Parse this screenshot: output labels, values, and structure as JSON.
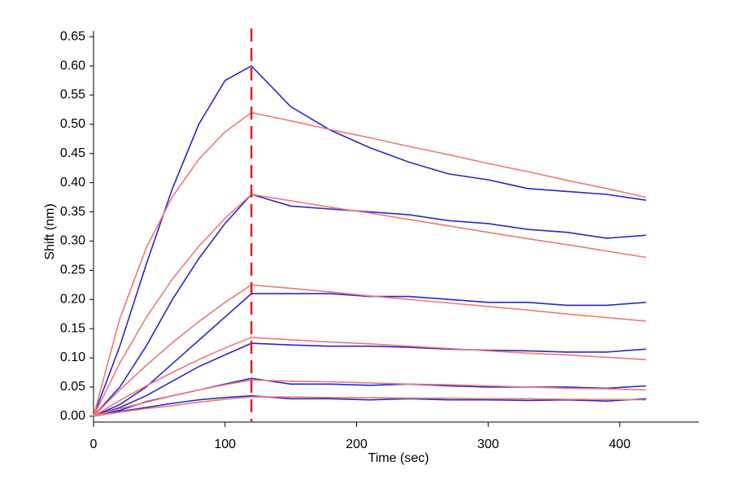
{
  "chart_data": {
    "type": "line",
    "x_label": "Time (sec)",
    "y_label": "Shift (nm)",
    "x": [
      0,
      20,
      40,
      60,
      80,
      100,
      120,
      150,
      180,
      210,
      240,
      270,
      300,
      330,
      360,
      390,
      420
    ],
    "series": [
      {
        "color": "#2828c8",
        "values": [
          0,
          0.12,
          0.26,
          0.39,
          0.5,
          0.575,
          0.6,
          0.53,
          0.49,
          0.46,
          0.435,
          0.415,
          0.405,
          0.39,
          0.385,
          0.38,
          0.37
        ]
      },
      {
        "color": "#2828c8",
        "values": [
          0,
          0.05,
          0.12,
          0.2,
          0.27,
          0.33,
          0.38,
          0.36,
          0.355,
          0.35,
          0.345,
          0.335,
          0.33,
          0.32,
          0.315,
          0.305,
          0.31
        ]
      },
      {
        "color": "#2828c8",
        "values": [
          0,
          0.02,
          0.05,
          0.09,
          0.13,
          0.17,
          0.21,
          0.21,
          0.21,
          0.205,
          0.205,
          0.2,
          0.195,
          0.195,
          0.19,
          0.19,
          0.195
        ]
      },
      {
        "color": "#2828c8",
        "values": [
          0,
          0.015,
          0.035,
          0.06,
          0.085,
          0.105,
          0.125,
          0.122,
          0.12,
          0.12,
          0.118,
          0.115,
          0.113,
          0.112,
          0.11,
          0.11,
          0.115
        ]
      },
      {
        "color": "#2828c8",
        "values": [
          0,
          0.01,
          0.025,
          0.035,
          0.045,
          0.055,
          0.065,
          0.055,
          0.055,
          0.053,
          0.055,
          0.052,
          0.05,
          0.05,
          0.05,
          0.048,
          0.052
        ]
      },
      {
        "color": "#2828c8",
        "values": [
          0,
          0.008,
          0.015,
          0.022,
          0.028,
          0.032,
          0.035,
          0.03,
          0.03,
          0.028,
          0.03,
          0.028,
          0.028,
          0.027,
          0.028,
          0.026,
          0.03
        ]
      },
      {
        "color": "#f07878",
        "values": [
          0,
          0.167,
          0.288,
          0.376,
          0.44,
          0.487,
          0.52,
          0.506,
          0.491,
          0.477,
          0.462,
          0.448,
          0.433,
          0.419,
          0.404,
          0.39,
          0.375
        ]
      },
      {
        "color": "#f07878",
        "values": [
          0,
          0.091,
          0.169,
          0.235,
          0.291,
          0.339,
          0.38,
          0.369,
          0.358,
          0.348,
          0.337,
          0.326,
          0.315,
          0.304,
          0.294,
          0.283,
          0.272
        ]
      },
      {
        "color": "#f07878",
        "values": [
          0,
          0.045,
          0.087,
          0.126,
          0.162,
          0.195,
          0.225,
          0.219,
          0.213,
          0.206,
          0.2,
          0.194,
          0.188,
          0.182,
          0.175,
          0.169,
          0.163
        ]
      },
      {
        "color": "#f07878",
        "values": [
          0,
          0.027,
          0.052,
          0.075,
          0.097,
          0.117,
          0.135,
          0.131,
          0.127,
          0.124,
          0.12,
          0.116,
          0.112,
          0.108,
          0.105,
          0.101,
          0.097
        ]
      },
      {
        "color": "#f07878",
        "values": [
          0,
          0.013,
          0.024,
          0.035,
          0.045,
          0.054,
          0.062,
          0.06,
          0.059,
          0.057,
          0.055,
          0.054,
          0.052,
          0.05,
          0.048,
          0.047,
          0.045
        ]
      },
      {
        "color": "#f07878",
        "values": [
          0,
          0.007,
          0.013,
          0.018,
          0.024,
          0.029,
          0.033,
          0.033,
          0.032,
          0.032,
          0.031,
          0.031,
          0.03,
          0.03,
          0.029,
          0.029,
          0.028
        ]
      }
    ],
    "vline_x": 120,
    "vline_color": "#e02020",
    "xlim": [
      0,
      460
    ],
    "xticks": [
      0,
      100,
      200,
      300,
      400
    ],
    "ylim": [
      -0.01,
      0.66
    ],
    "yticks": [
      {
        "value": 0,
        "label": "0.00"
      },
      {
        "value": 0.05,
        "label": "0.05"
      },
      {
        "value": 0.1,
        "label": "0.10"
      },
      {
        "value": 0.15,
        "label": "0.15"
      },
      {
        "value": 0.2,
        "label": "0.20"
      },
      {
        "value": 0.25,
        "label": "0.25"
      },
      {
        "value": 0.3,
        "label": "0.30"
      },
      {
        "value": 0.35,
        "label": "0.35"
      },
      {
        "value": 0.4,
        "label": "0.40"
      },
      {
        "value": 0.45,
        "label": "0.45"
      },
      {
        "value": 0.5,
        "label": "0.50"
      },
      {
        "value": 0.55,
        "label": "0.55"
      },
      {
        "value": 0.6,
        "label": "0.60"
      },
      {
        "value": 0.65,
        "label": "0.65"
      }
    ]
  }
}
